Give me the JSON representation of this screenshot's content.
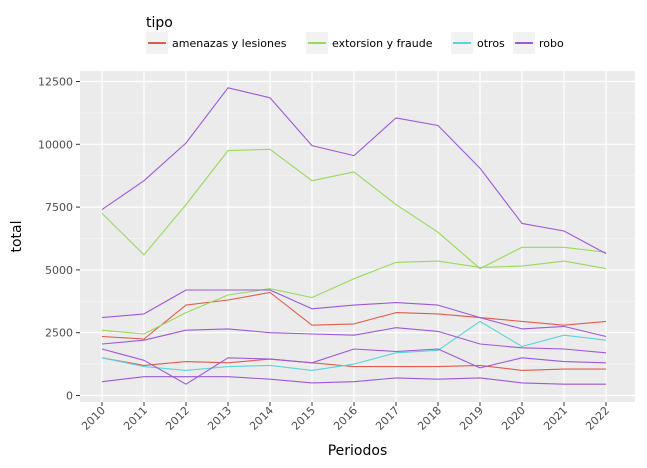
{
  "chart_data": {
    "type": "line",
    "title": "",
    "xlabel": "Periodos",
    "ylabel": "total",
    "x": [
      "2010",
      "2011",
      "2012",
      "2013",
      "2014",
      "2015",
      "2016",
      "2017",
      "2018",
      "2019",
      "2020",
      "2021",
      "2022"
    ],
    "ylim": [
      0,
      12500
    ],
    "yticks": [
      0,
      2500,
      5000,
      7500,
      10000,
      12500
    ],
    "ytick_labels": [
      "0",
      "2500",
      "5000",
      "7500",
      "10000",
      "12500"
    ],
    "grid": true,
    "panel_background": "#ebebeb",
    "legend": {
      "title": "tipo",
      "placement": "top",
      "entries": [
        {
          "label": "amenazas y lesiones",
          "color": "#e05c4c"
        },
        {
          "label": "extorsion y fraude",
          "color": "#98d95a"
        },
        {
          "label": "otros",
          "color": "#5bd3da"
        },
        {
          "label": "robo",
          "color": "#9b59d9"
        }
      ]
    },
    "series": [
      {
        "group": "amenazas y lesiones",
        "color": "#e05c4c",
        "values": [
          2350,
          2250,
          3600,
          3800,
          4100,
          2800,
          2850,
          3300,
          3250,
          3100,
          2950,
          2800,
          2950
        ]
      },
      {
        "group": "amenazas y lesiones",
        "color": "#e05c4c",
        "values": [
          1500,
          1200,
          1350,
          1300,
          1450,
          1300,
          1150,
          1150,
          1150,
          1200,
          1000,
          1050,
          1050
        ]
      },
      {
        "group": "extorsion y fraude",
        "color": "#98d95a",
        "values": [
          7250,
          5600,
          7600,
          9750,
          9800,
          8550,
          8900,
          7600,
          6500,
          5050,
          5900,
          5900,
          5700
        ]
      },
      {
        "group": "extorsion y fraude",
        "color": "#98d95a",
        "values": [
          2600,
          2450,
          3300,
          4000,
          4250,
          3900,
          4650,
          5300,
          5350,
          5100,
          5150,
          5350,
          5050
        ]
      },
      {
        "group": "otros",
        "color": "#5bd3da",
        "values": [
          1500,
          1150,
          1000,
          1150,
          1200,
          1000,
          1250,
          1700,
          1800,
          2950,
          1950,
          2400,
          2200
        ]
      },
      {
        "group": "robo",
        "color": "#9b59d9",
        "values": [
          7400,
          8550,
          10050,
          12250,
          11850,
          9950,
          9550,
          11050,
          10750,
          9050,
          6850,
          6550,
          5650
        ]
      },
      {
        "group": "robo",
        "color": "#9b59d9",
        "values": [
          3100,
          3250,
          4200,
          4200,
          4200,
          3450,
          3600,
          3700,
          3600,
          3100,
          2650,
          2750,
          2350
        ]
      },
      {
        "group": "robo",
        "color": "#9b59d9",
        "values": [
          2050,
          2200,
          2600,
          2650,
          2500,
          2450,
          2400,
          2700,
          2550,
          2050,
          1900,
          1850,
          1700
        ]
      },
      {
        "group": "robo",
        "color": "#9b59d9",
        "values": [
          1850,
          1400,
          450,
          1500,
          1450,
          1300,
          1850,
          1750,
          1850,
          1100,
          1500,
          1350,
          1300
        ]
      },
      {
        "group": "robo",
        "color": "#9b59d9",
        "values": [
          550,
          750,
          750,
          750,
          650,
          500,
          550,
          700,
          650,
          700,
          500,
          450,
          450
        ]
      }
    ]
  }
}
